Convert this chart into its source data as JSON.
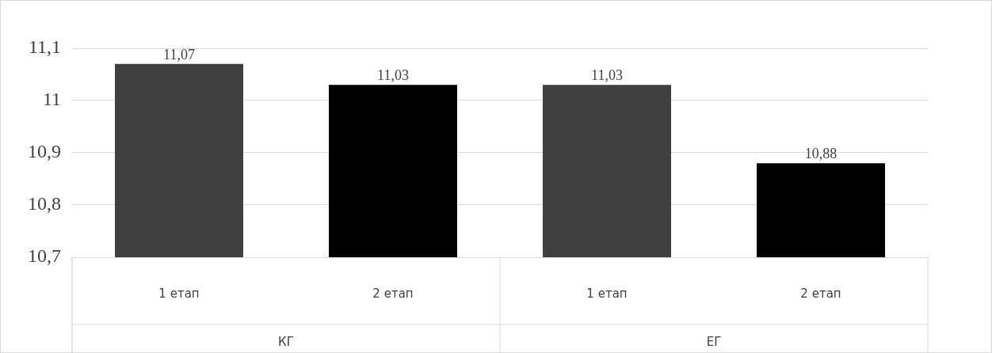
{
  "chart_data": {
    "type": "bar",
    "categories": [
      "1 етап",
      "2 етап",
      "1 етап",
      "2 етап"
    ],
    "values": [
      11.07,
      11.03,
      11.03,
      10.88
    ],
    "colors": [
      "#404040",
      "#000000",
      "#404040",
      "#000000"
    ],
    "value_labels": [
      "11,07",
      "11,03",
      "11,03",
      "10,88"
    ],
    "ylim": [
      10.7,
      11.1
    ],
    "yticks": [
      {
        "value": 10.7,
        "label": "10,7"
      },
      {
        "value": 10.8,
        "label": "10,8"
      },
      {
        "value": 10.9,
        "label": "10,9"
      },
      11,
      {
        "value": 11.1,
        "label": "11,1"
      }
    ],
    "grid": "y",
    "legend": false,
    "annotations": [
      "КГ",
      "ЕГ"
    ]
  }
}
